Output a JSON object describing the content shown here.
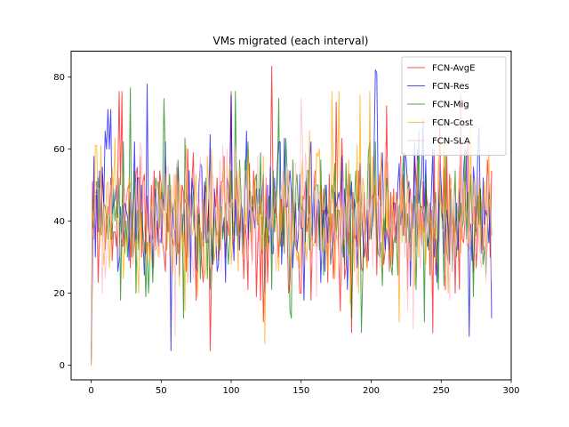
{
  "chart_data": {
    "type": "line",
    "title": "VMs migrated (each interval)",
    "xlabel": "",
    "ylabel": "",
    "xlim": [
      -14.3,
      300
    ],
    "ylim": [
      -4.1,
      87.2
    ],
    "xticks": [
      0,
      50,
      100,
      150,
      200,
      250,
      300
    ],
    "yticks": [
      0,
      20,
      40,
      60,
      80
    ],
    "grid": false,
    "legend_position": "top-right",
    "n_points": 287,
    "series": [
      {
        "name": "FCN-AvgE",
        "color": "#ff0000",
        "opacity": 0.7,
        "seed": 11,
        "mean": 41,
        "spread": 18,
        "min": 4,
        "max": 83,
        "start": 0,
        "anchors": [
          [
            20,
            76
          ],
          [
            22,
            76
          ],
          [
            85,
            4
          ],
          [
            100,
            76
          ],
          [
            129,
            83
          ],
          [
            175,
            73
          ],
          [
            186,
            9
          ],
          [
            211,
            72
          ],
          [
            244,
            9
          ],
          [
            264,
            75
          ]
        ]
      },
      {
        "name": "FCN-Res",
        "color": "#0000ff",
        "opacity": 0.7,
        "seed": 23,
        "mean": 42,
        "spread": 18,
        "min": 4,
        "max": 82,
        "start": 0,
        "anchors": [
          [
            8,
            55
          ],
          [
            12,
            71
          ],
          [
            14,
            71
          ],
          [
            40,
            78
          ],
          [
            57,
            4
          ],
          [
            100,
            75
          ],
          [
            203,
            82
          ],
          [
            204,
            81
          ],
          [
            270,
            8
          ],
          [
            286,
            13
          ]
        ]
      },
      {
        "name": "FCN-Mig",
        "color": "#008000",
        "opacity": 0.7,
        "seed": 37,
        "mean": 40,
        "spread": 18,
        "min": 8,
        "max": 77,
        "start": 0,
        "anchors": [
          [
            28,
            77
          ],
          [
            52,
            74
          ],
          [
            103,
            76
          ],
          [
            134,
            74
          ],
          [
            193,
            9
          ],
          [
            238,
            12
          ]
        ]
      },
      {
        "name": "FCN-Cost",
        "color": "#ffa500",
        "opacity": 0.7,
        "seed": 53,
        "mean": 41,
        "spread": 17,
        "min": 6,
        "max": 76,
        "start": 0,
        "anchors": [
          [
            124,
            6
          ],
          [
            172,
            76
          ],
          [
            177,
            76
          ],
          [
            192,
            75
          ],
          [
            199,
            76
          ],
          [
            220,
            12
          ]
        ]
      },
      {
        "name": "FCN-SLA",
        "color": "#ffb6c1",
        "opacity": 0.7,
        "seed": 71,
        "mean": 41,
        "spread": 16,
        "min": 5,
        "max": 75,
        "start": 0,
        "anchors": [
          [
            60,
            8
          ],
          [
            150,
            74
          ],
          [
            230,
            10
          ]
        ]
      }
    ]
  }
}
